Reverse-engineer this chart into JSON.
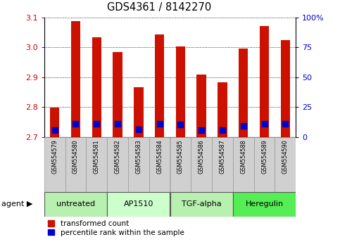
{
  "title": "GDS4361 / 8142270",
  "samples": [
    "GSM554579",
    "GSM554580",
    "GSM554581",
    "GSM554582",
    "GSM554583",
    "GSM554584",
    "GSM554585",
    "GSM554586",
    "GSM554587",
    "GSM554588",
    "GSM554589",
    "GSM554590"
  ],
  "red_values": [
    2.797,
    3.088,
    3.033,
    2.984,
    2.867,
    3.042,
    3.003,
    2.908,
    2.884,
    2.997,
    3.072,
    3.025
  ],
  "blue_values": [
    2.723,
    2.745,
    2.745,
    2.745,
    2.725,
    2.745,
    2.742,
    2.722,
    2.722,
    2.738,
    2.745,
    2.743
  ],
  "ymin": 2.7,
  "ymax": 3.1,
  "yticks_left": [
    2.7,
    2.8,
    2.9,
    3.0,
    3.1
  ],
  "yticks_right": [
    0,
    25,
    50,
    75,
    100
  ],
  "agents": [
    {
      "label": "untreated",
      "start": 0,
      "end": 3,
      "color": "#b8f0b0"
    },
    {
      "label": "AP1510",
      "start": 3,
      "end": 6,
      "color": "#ccffcc"
    },
    {
      "label": "TGF-alpha",
      "start": 6,
      "end": 9,
      "color": "#b8f0b0"
    },
    {
      "label": "Heregulin",
      "start": 9,
      "end": 12,
      "color": "#55ee55"
    }
  ],
  "bar_color": "#cc1100",
  "blue_color": "#0000cc",
  "bar_width": 0.45,
  "blue_marker_size": 30,
  "sample_bg_color": "#d0d0d0",
  "sample_edge_color": "#999999",
  "legend_red": "transformed count",
  "legend_blue": "percentile rank within the sample",
  "agent_label": "agent",
  "title_color": "#000000",
  "left_tick_color": "#cc0000",
  "right_tick_color": "#0000cc"
}
